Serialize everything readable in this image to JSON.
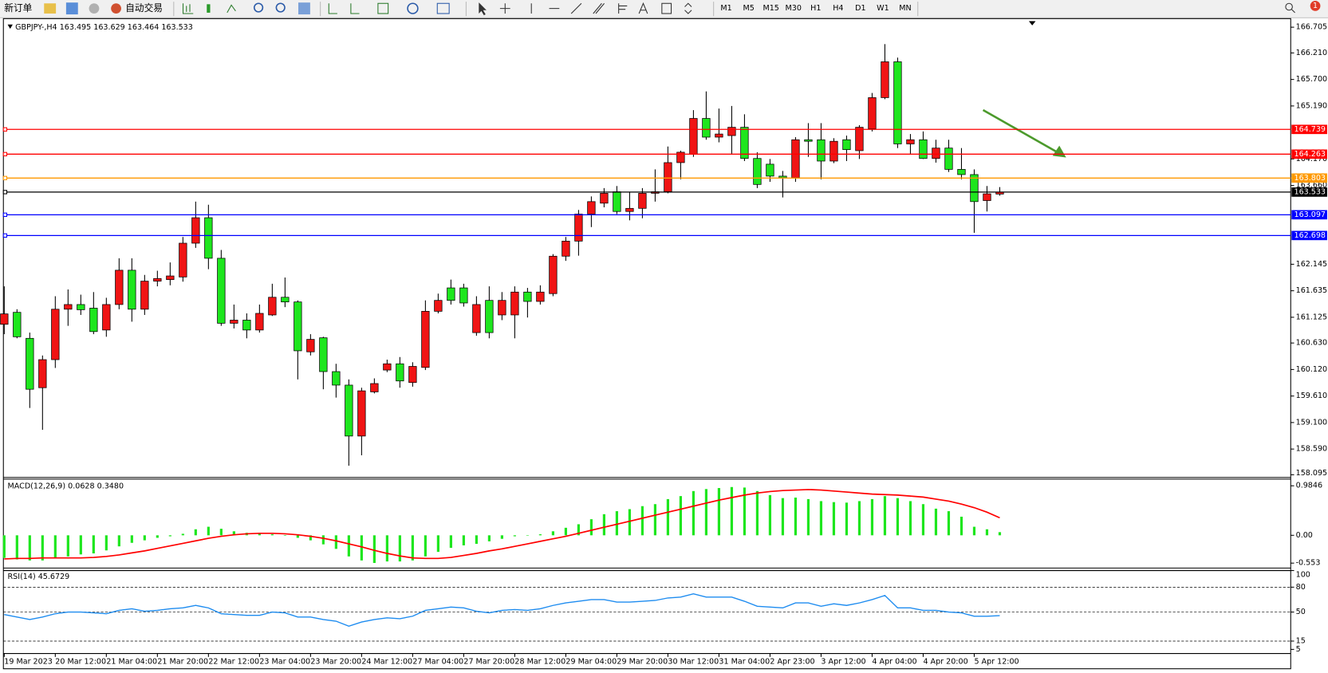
{
  "toolbar": {
    "new_order": "新订单",
    "auto_trading": "自动交易",
    "timeframes": [
      "M1",
      "M5",
      "M15",
      "M30",
      "H1",
      "H4",
      "D1",
      "W1",
      "MN"
    ],
    "notifications": 1
  },
  "chart_data": [
    {
      "type": "candlestick",
      "title": "GBPJPY-,H4",
      "up_color": "#f01414",
      "down_color": "#1ee61e",
      "grid": false,
      "ylim": [
        158.06,
        166.87
      ],
      "yticks": [
        166.705,
        {
          "value": 166.21,
          "label": "166.210"
        },
        {
          "value": 165.7,
          "label": "165.700"
        },
        {
          "value": 165.19,
          "label": "165.190"
        },
        {
          "value": 164.17,
          "label": "164.170"
        },
        {
          "value": 163.66,
          "label": "163.660"
        },
        162.145,
        161.635,
        161.125,
        {
          "value": 160.63,
          "label": "160.630"
        },
        {
          "value": 160.12,
          "label": "160.120"
        },
        {
          "value": 159.61,
          "label": "159.610"
        },
        {
          "value": 159.1,
          "label": "159.100"
        },
        {
          "value": 158.59,
          "label": "158.590"
        },
        158.095
      ],
      "levels": [
        {
          "value": 164.739,
          "color": "#ff0000"
        },
        {
          "value": 164.263,
          "color": "#ff0000"
        },
        {
          "value": 163.803,
          "color": "#ff9900"
        },
        {
          "value": 163.097,
          "color": "#0000ff"
        },
        {
          "value": 162.698,
          "color": "#0000ff"
        }
      ],
      "current": {
        "value": 163.533,
        "color": "#000000"
      },
      "categories": [
        "19 Mar 2023",
        null,
        null,
        null,
        "20 Mar 12:00",
        null,
        null,
        null,
        "21 Mar 04:00",
        null,
        null,
        null,
        "21 Mar 20:00",
        null,
        null,
        null,
        "22 Mar 12:00",
        null,
        null,
        null,
        "23 Mar 04:00",
        null,
        null,
        null,
        "23 Mar 20:00",
        null,
        null,
        null,
        "24 Mar 12:00",
        null,
        null,
        null,
        "27 Mar 04:00",
        null,
        null,
        null,
        "27 Mar 20:00",
        null,
        null,
        null,
        "28 Mar 12:00",
        null,
        null,
        null,
        "29 Mar 04:00",
        null,
        null,
        null,
        "29 Mar 20:00",
        null,
        null,
        null,
        "30 Mar 12:00",
        null,
        null,
        null,
        "31 Mar 04:00",
        null,
        null,
        null,
        "2 Apr 23:00",
        null,
        null,
        null,
        "3 Apr 12:00",
        null,
        null,
        null,
        "4 Apr 04:00",
        null,
        null,
        null,
        "4 Apr 20:00",
        null,
        null,
        null,
        "5 Apr 12:00",
        null,
        null
      ],
      "ohlc": [
        [
          160.99,
          161.72,
          160.8,
          161.19
        ],
        [
          161.22,
          161.28,
          160.72,
          160.75
        ],
        [
          160.72,
          160.83,
          159.38,
          159.74
        ],
        [
          159.77,
          160.39,
          158.96,
          160.31
        ],
        [
          160.31,
          161.53,
          160.15,
          161.28
        ],
        [
          161.28,
          161.66,
          160.96,
          161.37
        ],
        [
          161.37,
          161.56,
          161.17,
          161.27
        ],
        [
          161.3,
          161.61,
          160.8,
          160.85
        ],
        [
          160.88,
          161.5,
          160.75,
          161.37
        ],
        [
          161.37,
          162.26,
          161.28,
          162.03
        ],
        [
          162.03,
          162.26,
          161.04,
          161.28
        ],
        [
          161.28,
          161.94,
          161.17,
          161.82
        ],
        [
          161.82,
          162.02,
          161.72,
          161.87
        ],
        [
          161.85,
          162.18,
          161.74,
          161.92
        ],
        [
          161.9,
          162.67,
          161.81,
          162.55
        ],
        [
          162.55,
          163.35,
          162.46,
          163.04
        ],
        [
          163.04,
          163.29,
          162.05,
          162.26
        ],
        [
          162.26,
          162.42,
          160.96,
          161.01
        ],
        [
          161.01,
          161.37,
          160.91,
          161.07
        ],
        [
          161.07,
          161.2,
          160.72,
          160.88
        ],
        [
          160.88,
          161.37,
          160.83,
          161.2
        ],
        [
          161.17,
          161.77,
          161.15,
          161.51
        ],
        [
          161.51,
          161.89,
          161.32,
          161.42
        ],
        [
          161.42,
          161.45,
          159.93,
          160.48
        ],
        [
          160.46,
          160.8,
          160.39,
          160.7
        ],
        [
          160.73,
          160.75,
          159.74,
          160.08
        ],
        [
          160.08,
          160.23,
          159.58,
          159.82
        ],
        [
          159.82,
          159.93,
          158.27,
          158.84
        ],
        [
          158.84,
          159.77,
          158.47,
          159.71
        ],
        [
          159.69,
          159.95,
          159.66,
          159.85
        ],
        [
          160.11,
          160.31,
          160.07,
          160.23
        ],
        [
          160.23,
          160.36,
          159.77,
          159.9
        ],
        [
          159.87,
          160.26,
          159.79,
          160.18
        ],
        [
          160.16,
          161.45,
          160.11,
          161.24
        ],
        [
          161.24,
          161.58,
          161.2,
          161.45
        ],
        [
          161.69,
          161.85,
          161.37,
          161.45
        ],
        [
          161.69,
          161.77,
          161.33,
          161.4
        ],
        [
          160.83,
          161.53,
          160.77,
          161.37
        ],
        [
          161.45,
          161.72,
          160.72,
          160.83
        ],
        [
          161.17,
          161.61,
          161.07,
          161.45
        ],
        [
          161.17,
          161.72,
          160.72,
          161.61
        ],
        [
          161.61,
          161.69,
          161.12,
          161.43
        ],
        [
          161.43,
          161.74,
          161.37,
          161.61
        ],
        [
          161.58,
          162.34,
          161.53,
          162.3
        ],
        [
          162.3,
          162.67,
          162.21,
          162.59
        ],
        [
          162.59,
          163.19,
          162.31,
          163.11
        ],
        [
          163.11,
          163.45,
          162.86,
          163.35
        ],
        [
          163.32,
          163.61,
          163.24,
          163.51
        ],
        [
          163.54,
          163.65,
          163.11,
          163.16
        ],
        [
          163.16,
          163.54,
          162.99,
          163.22
        ],
        [
          163.22,
          163.61,
          163.03,
          163.51
        ],
        [
          163.51,
          163.97,
          163.35,
          163.54
        ],
        [
          163.54,
          164.41,
          163.51,
          164.1
        ],
        [
          164.1,
          164.33,
          163.78,
          164.3
        ],
        [
          164.26,
          165.11,
          164.21,
          164.95
        ],
        [
          164.95,
          165.47,
          164.54,
          164.59
        ],
        [
          164.59,
          165.14,
          164.49,
          164.65
        ],
        [
          164.62,
          165.19,
          164.26,
          164.78
        ],
        [
          164.78,
          165.03,
          164.13,
          164.18
        ],
        [
          164.18,
          164.3,
          163.61,
          163.68
        ],
        [
          164.07,
          164.17,
          163.73,
          163.84
        ],
        [
          163.84,
          163.94,
          163.43,
          163.81
        ],
        [
          163.81,
          164.59,
          163.73,
          164.54
        ],
        [
          164.54,
          164.86,
          164.21,
          164.51
        ],
        [
          164.54,
          164.86,
          163.78,
          164.13
        ],
        [
          164.13,
          164.57,
          164.09,
          164.51
        ],
        [
          164.54,
          164.62,
          164.13,
          164.35
        ],
        [
          164.33,
          164.82,
          164.17,
          164.78
        ],
        [
          164.75,
          165.44,
          164.7,
          165.35
        ],
        [
          165.35,
          166.38,
          165.32,
          166.04
        ],
        [
          166.04,
          166.12,
          164.38,
          164.46
        ],
        [
          164.46,
          164.65,
          164.26,
          164.54
        ],
        [
          164.54,
          164.7,
          164.17,
          164.18
        ],
        [
          164.18,
          164.54,
          164.1,
          164.38
        ],
        [
          164.38,
          164.54,
          163.92,
          163.97
        ],
        [
          163.97,
          164.38,
          163.78,
          163.87
        ],
        [
          163.87,
          163.97,
          162.75,
          163.35
        ],
        [
          163.37,
          163.65,
          163.16,
          163.5
        ],
        [
          163.495,
          163.629,
          163.464,
          163.533
        ]
      ]
    },
    {
      "type": "macd",
      "title": "MACD(12,26,9)",
      "legend_values": [
        "0.0628",
        "0.3480"
      ],
      "ylim": [
        -0.634,
        1.1
      ],
      "yticks": [
        0.9846,
        {
          "value": 0,
          "label": "0.00"
        },
        -0.553
      ],
      "histogram": {
        "color": "#1ee61e",
        "values": [
          -0.45,
          -0.48,
          -0.5,
          -0.5,
          -0.46,
          -0.42,
          -0.38,
          -0.36,
          -0.3,
          -0.22,
          -0.15,
          -0.1,
          -0.05,
          -0.02,
          0.03,
          0.12,
          0.17,
          0.13,
          0.08,
          0.05,
          0.03,
          0.02,
          -0.01,
          -0.05,
          -0.1,
          -0.18,
          -0.27,
          -0.42,
          -0.5,
          -0.55,
          -0.52,
          -0.52,
          -0.5,
          -0.42,
          -0.33,
          -0.25,
          -0.2,
          -0.17,
          -0.12,
          -0.07,
          -0.02,
          0.0,
          0.02,
          0.08,
          0.15,
          0.22,
          0.32,
          0.42,
          0.48,
          0.52,
          0.58,
          0.62,
          0.72,
          0.78,
          0.88,
          0.92,
          0.94,
          0.96,
          0.95,
          0.88,
          0.8,
          0.74,
          0.75,
          0.72,
          0.68,
          0.66,
          0.65,
          0.68,
          0.72,
          0.78,
          0.74,
          0.68,
          0.62,
          0.53,
          0.48,
          0.37,
          0.17,
          0.12,
          0.0628
        ]
      },
      "signal": {
        "color": "#ff0000",
        "values": [
          -0.47,
          -0.46,
          -0.46,
          -0.45,
          -0.45,
          -0.45,
          -0.45,
          -0.44,
          -0.42,
          -0.39,
          -0.35,
          -0.31,
          -0.26,
          -0.21,
          -0.16,
          -0.11,
          -0.06,
          -0.02,
          0.01,
          0.03,
          0.04,
          0.04,
          0.03,
          0.01,
          -0.02,
          -0.06,
          -0.11,
          -0.17,
          -0.23,
          -0.3,
          -0.36,
          -0.41,
          -0.45,
          -0.46,
          -0.46,
          -0.44,
          -0.4,
          -0.36,
          -0.31,
          -0.27,
          -0.22,
          -0.17,
          -0.12,
          -0.07,
          -0.02,
          0.04,
          0.1,
          0.16,
          0.22,
          0.28,
          0.34,
          0.4,
          0.46,
          0.52,
          0.58,
          0.64,
          0.7,
          0.75,
          0.8,
          0.84,
          0.87,
          0.89,
          0.9,
          0.91,
          0.9,
          0.88,
          0.86,
          0.84,
          0.82,
          0.81,
          0.8,
          0.78,
          0.76,
          0.72,
          0.68,
          0.62,
          0.55,
          0.46,
          0.348
        ]
      }
    },
    {
      "type": "rsi",
      "title": "RSI(14)",
      "color": "#1e8cf0",
      "ylim": [
        0,
        100
      ],
      "yticks": [
        100,
        80,
        50,
        15,
        5
      ],
      "levels": [
        80,
        50,
        15
      ],
      "values": [
        47,
        44,
        41,
        44,
        48,
        50,
        50,
        49,
        48,
        52,
        54,
        51,
        52,
        54,
        55,
        58,
        55,
        48,
        47,
        46,
        46,
        50,
        49,
        44,
        44,
        41,
        39,
        33,
        38,
        41,
        43,
        42,
        45,
        52,
        54,
        56,
        55,
        51,
        49,
        52,
        53,
        52,
        54,
        58,
        61,
        63,
        65,
        65,
        62,
        62,
        63,
        64,
        67,
        68,
        72,
        68,
        68,
        68,
        63,
        57,
        56,
        55,
        61,
        61,
        57,
        60,
        58,
        61,
        65,
        70,
        55,
        55,
        52,
        52,
        50,
        49,
        45,
        45,
        45.6729
      ]
    }
  ]
}
